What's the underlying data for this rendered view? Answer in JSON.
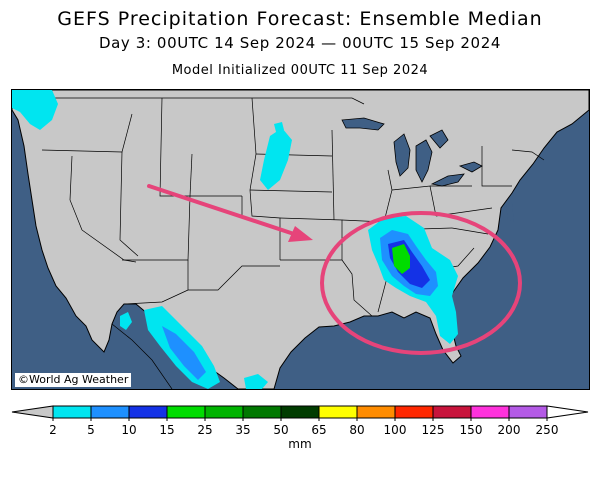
{
  "title": "GEFS Precipitation Forecast: Ensemble Median",
  "subtitle": "Day 3: 00UTC 14 Sep 2024 — 00UTC 15 Sep 2024",
  "init": "Model Initialized 00UTC 11 Sep 2024",
  "credit": "©World Ag Weather",
  "colors": {
    "ocean": "#3f5f85",
    "land": "#c8c8c8",
    "annotation": "#e6447a"
  },
  "colorbar": {
    "unit": "mm",
    "ticks": [
      "2",
      "5",
      "10",
      "15",
      "25",
      "35",
      "50",
      "65",
      "80",
      "100",
      "125",
      "150",
      "200",
      "250"
    ],
    "colors": [
      "#00e5f0",
      "#1e90ff",
      "#1432e6",
      "#00dc00",
      "#00b400",
      "#007800",
      "#003c00",
      "#ffff00",
      "#ff8c00",
      "#ff2800",
      "#c8143c",
      "#ff32dc",
      "#b45ae6"
    ],
    "under_color": "#c8c8c8",
    "over_color": "#ffffff"
  }
}
